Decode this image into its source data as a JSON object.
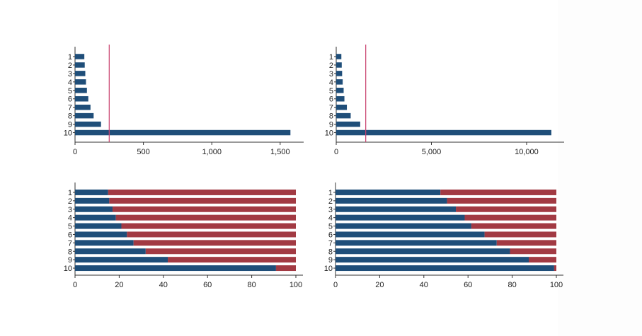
{
  "colors": {
    "primary": "#1f4e79",
    "secondary": "#a23a43",
    "refline": "#c9416e",
    "axis": "#333333"
  },
  "chart_data": [
    {
      "type": "bar",
      "orientation": "horizontal",
      "categories": [
        "1",
        "2",
        "3",
        "4",
        "5",
        "6",
        "7",
        "8",
        "9",
        "10"
      ],
      "values": [
        68,
        71,
        75,
        80,
        87,
        97,
        113,
        136,
        190,
        1575
      ],
      "xlim": [
        0,
        1620
      ],
      "xticks": [
        0,
        500,
        1000,
        1500
      ],
      "xtick_labels": [
        "0",
        "500",
        "1,000",
        "1,500"
      ],
      "reference_line": 250
    },
    {
      "type": "bar",
      "orientation": "horizontal",
      "categories": [
        "1",
        "2",
        "3",
        "4",
        "5",
        "6",
        "7",
        "8",
        "9",
        "10"
      ],
      "values": [
        270,
        290,
        310,
        340,
        390,
        430,
        560,
        760,
        1260,
        11300
      ],
      "xlim": [
        0,
        11600
      ],
      "xticks": [
        0,
        5000,
        10000
      ],
      "xtick_labels": [
        "0",
        "5,000",
        "10,000"
      ],
      "reference_line": 1550
    },
    {
      "type": "bar",
      "orientation": "horizontal",
      "stacked": true,
      "categories": [
        "1",
        "2",
        "3",
        "4",
        "5",
        "6",
        "7",
        "8",
        "9",
        "10"
      ],
      "series": [
        {
          "values": [
            15,
            15.5,
            17,
            18.5,
            21,
            23.5,
            26.5,
            32,
            42,
            91
          ]
        },
        {
          "values": [
            85,
            84.5,
            83,
            81.5,
            79,
            76.5,
            73.5,
            68,
            58,
            9
          ]
        }
      ],
      "xlim": [
        0,
        100
      ],
      "xticks": [
        0,
        20,
        40,
        60,
        80,
        100
      ],
      "xtick_labels": [
        "0",
        "20",
        "40",
        "60",
        "80",
        "100"
      ]
    },
    {
      "type": "bar",
      "orientation": "horizontal",
      "stacked": true,
      "categories": [
        "1",
        "2",
        "3",
        "4",
        "5",
        "6",
        "7",
        "8",
        "9",
        "10"
      ],
      "series": [
        {
          "values": [
            47.5,
            50.5,
            54.5,
            58.5,
            61.5,
            67.5,
            73,
            79,
            87.5,
            99
          ]
        },
        {
          "values": [
            52.5,
            49.5,
            45.5,
            41.5,
            38.5,
            32.5,
            27,
            21,
            12.5,
            1
          ]
        }
      ],
      "xlim": [
        0,
        100
      ],
      "xticks": [
        0,
        20,
        40,
        60,
        80,
        100
      ],
      "xtick_labels": [
        "0",
        "20",
        "40",
        "60",
        "80",
        "100"
      ]
    }
  ]
}
